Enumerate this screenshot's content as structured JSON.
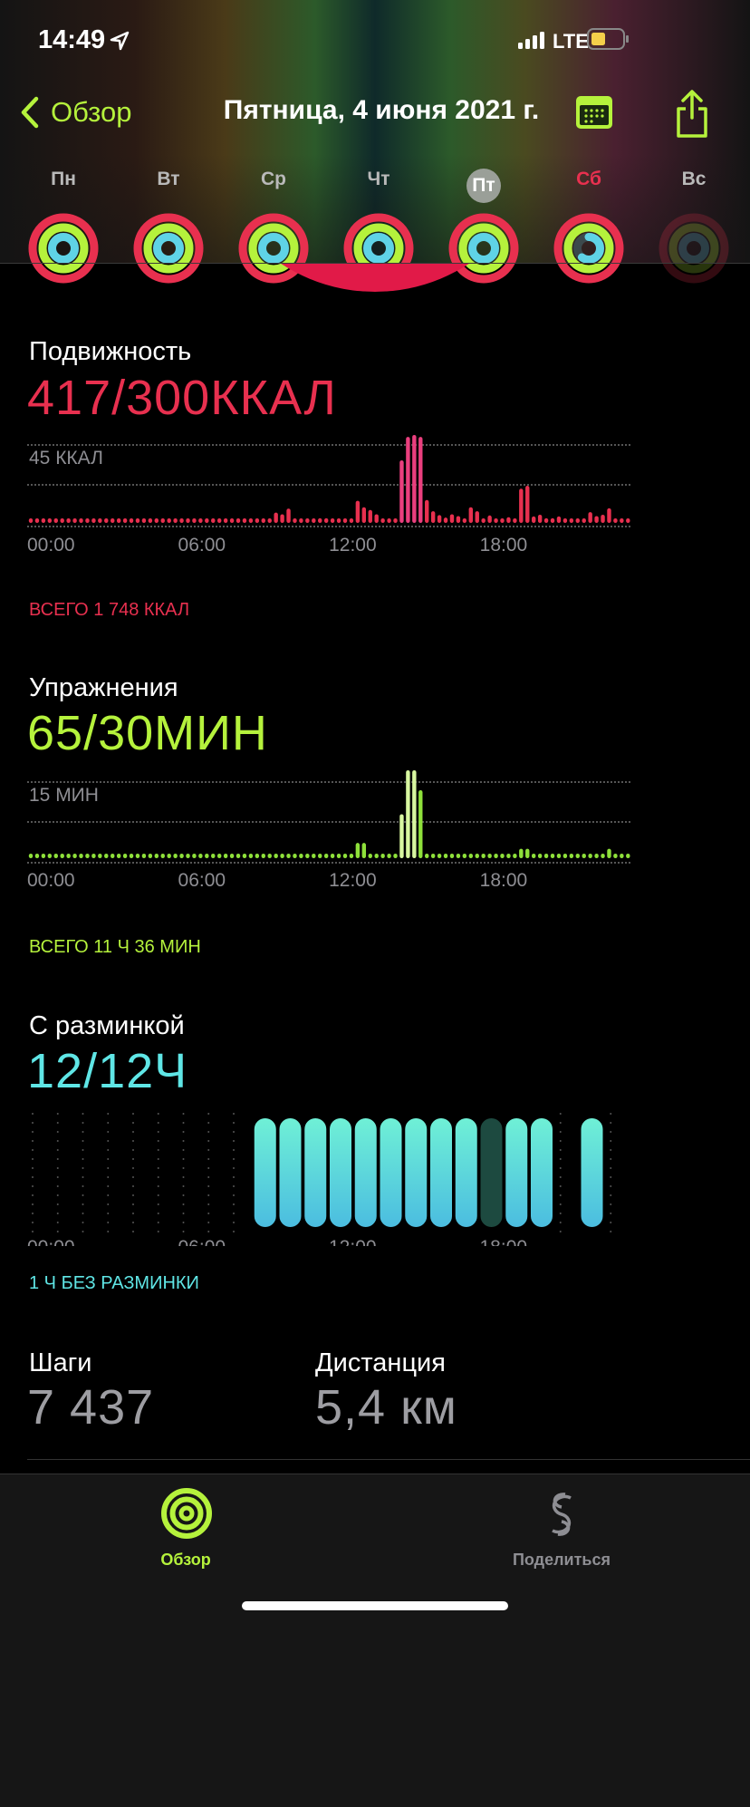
{
  "status_bar": {
    "time": "14:49",
    "network": "LTE",
    "battery_color": "#f5d04a"
  },
  "nav": {
    "back_label": "Обзор",
    "title": "Пятница, 4 июня 2021 г.",
    "accent": "#b5f23c"
  },
  "week": [
    {
      "label": "Пн",
      "move": 1.3,
      "exercise": 1.8,
      "stand": 1.0
    },
    {
      "label": "Вт",
      "move": 1.2,
      "exercise": 1.6,
      "stand": 1.0
    },
    {
      "label": "Ср",
      "move": 1.4,
      "exercise": 1.3,
      "stand": 1.0
    },
    {
      "label": "Чт",
      "move": 1.9,
      "exercise": 1.2,
      "stand": 1.0
    },
    {
      "label": "Пт",
      "move": 1.39,
      "exercise": 2.17,
      "stand": 1.0,
      "selected": true
    },
    {
      "label": "Сб",
      "move": 1.2,
      "exercise": 1.1,
      "stand": 0.6
    },
    {
      "label": "Вс",
      "move": 0,
      "exercise": 0,
      "stand": 0
    }
  ],
  "colors": {
    "move": "#e8304f",
    "move_peak": "#ea3f7e",
    "exercise": "#8ee03a",
    "exercise_peak": "#d8f7a0",
    "stand": "#5fe6d8",
    "stand_missed": "#1d4a40",
    "steps": "#9d9da2"
  },
  "move": {
    "label": "Подвижность",
    "value": "417/300ККАЛ",
    "scale_label": "45 ККАЛ",
    "total": "ВСЕГО 1 748 ККАЛ"
  },
  "exercise": {
    "label": "Упражнения",
    "value": "65/30МИН",
    "scale_label": "15 МИН",
    "total": "ВСЕГО 11 Ч 36 МИН"
  },
  "stand": {
    "label": "С разминкой",
    "value": "12/12Ч",
    "total": "1 Ч БЕЗ РАЗМИНКИ"
  },
  "time_ticks": [
    "00:00",
    "06:00",
    "12:00",
    "18:00"
  ],
  "steps": {
    "label": "Шаги",
    "value": "7 437"
  },
  "distance": {
    "label": "Дистанция",
    "value": "5,4 км"
  },
  "tabs": [
    {
      "label": "Обзор",
      "icon": "activity-rings-icon",
      "active": true
    },
    {
      "label": "Поделиться",
      "icon": "sharing-icon",
      "active": false
    }
  ],
  "chart_data": [
    {
      "type": "bar",
      "title": "Подвижность",
      "ylabel": "ККАЛ",
      "ylim": [
        0,
        45
      ],
      "x_unit": "15 min intervals 00:00–24:00",
      "xticks": [
        "00:00",
        "06:00",
        "12:00",
        "18:00"
      ],
      "highlight_indices": [
        59,
        60,
        61,
        62
      ],
      "values": [
        0,
        0,
        0,
        0,
        0,
        0,
        0,
        0,
        0,
        0,
        0,
        0,
        0,
        0,
        0,
        0,
        0,
        0,
        0,
        0,
        0,
        0,
        0,
        0,
        0,
        0,
        0,
        0,
        0,
        0,
        0,
        0,
        0,
        0,
        0,
        0,
        0,
        0,
        2,
        5.3,
        4.4,
        7.3,
        0,
        0,
        0,
        0,
        2.4,
        2.4,
        1.5,
        2.2,
        1.3,
        1.3,
        11.3,
        8,
        6.6,
        4.4,
        0,
        0,
        2.2,
        32,
        44,
        45,
        44,
        11.7,
        6,
        4,
        2.7,
        4.4,
        3.5,
        1.5,
        8,
        6,
        2.2,
        3.8,
        1.8,
        1.8,
        2.9,
        1.8,
        17.5,
        19,
        3.3,
        4.2,
        2.4,
        2.4,
        3.3,
        0,
        0,
        0,
        1.8,
        5.5,
        3.5,
        4.2,
        7.5,
        0,
        0,
        0
      ]
    },
    {
      "type": "bar",
      "title": "Упражнения",
      "ylabel": "МИН",
      "ylim": [
        0,
        15
      ],
      "x_unit": "15 min intervals 00:00–24:00",
      "xticks": [
        "00:00",
        "06:00",
        "12:00",
        "18:00"
      ],
      "highlight_indices": [
        59,
        60,
        61
      ],
      "values": [
        0,
        0,
        0,
        0,
        0,
        0,
        0,
        0,
        0,
        0,
        0,
        0,
        0,
        0,
        0,
        0,
        0,
        0,
        0,
        0,
        0,
        0,
        0,
        0,
        0,
        0,
        0,
        0,
        0,
        0,
        0,
        0,
        0,
        0,
        0,
        0,
        0,
        0,
        0,
        0,
        0,
        0,
        0,
        0,
        0,
        0,
        0,
        0,
        0,
        0,
        0,
        0,
        2.6,
        2.6,
        0,
        0.5,
        0,
        0,
        0,
        7.5,
        15,
        15,
        11.6,
        0,
        0.5,
        0,
        0,
        0,
        0,
        0,
        0,
        0,
        0,
        0,
        0,
        0,
        0,
        0,
        1.6,
        1.6,
        0,
        0.5,
        0,
        0,
        0,
        0,
        0,
        0,
        0,
        0,
        0,
        0,
        1.6,
        0,
        0,
        0
      ]
    },
    {
      "type": "bar",
      "title": "С разминкой",
      "x_unit": "hours",
      "xticks": [
        "00:00",
        "06:00",
        "12:00",
        "18:00"
      ],
      "hours": [
        "none",
        "none",
        "none",
        "none",
        "none",
        "none",
        "none",
        "none",
        "none",
        "stood",
        "stood",
        "stood",
        "stood",
        "stood",
        "stood",
        "stood",
        "stood",
        "stood",
        "missed",
        "stood",
        "stood",
        "none",
        "stood",
        "none"
      ]
    }
  ]
}
